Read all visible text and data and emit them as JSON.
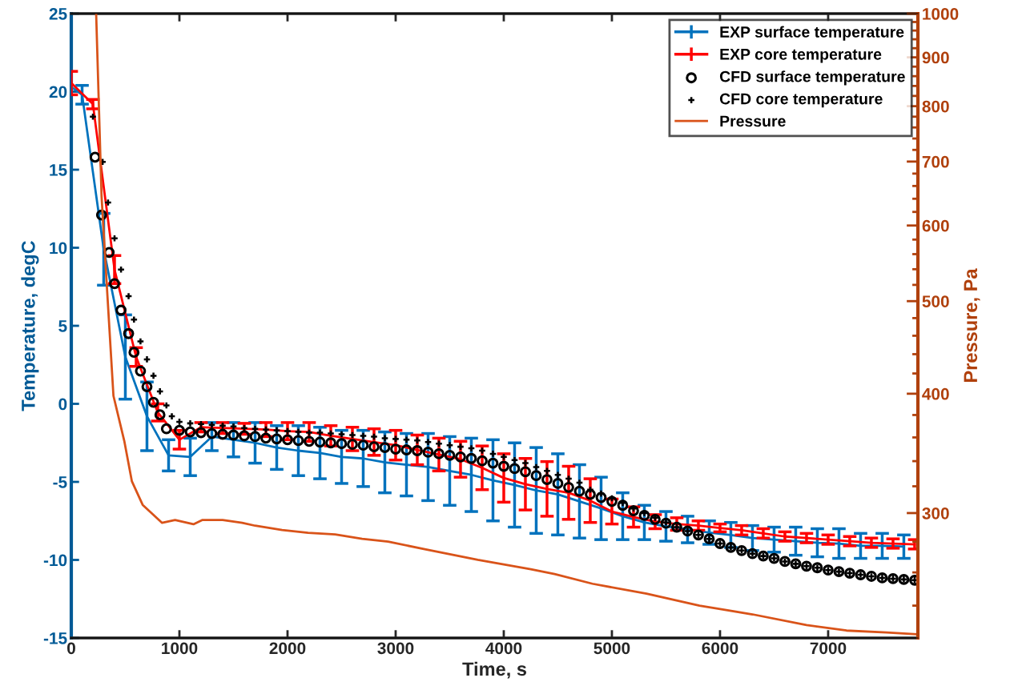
{
  "chart_data": {
    "type": "line",
    "xlabel": "Time, s",
    "ylabel": "Temperature, degC",
    "y2label": "Pressure, Pa",
    "xlim": [
      0,
      7830
    ],
    "xticks": [
      0,
      1000,
      2000,
      3000,
      4000,
      5000,
      6000,
      7000
    ],
    "ylim": [
      -15,
      25
    ],
    "yticks": [
      -15,
      -10,
      -5,
      0,
      5,
      10,
      15,
      20,
      25
    ],
    "y2lim": [
      222,
      1000
    ],
    "log": "y2",
    "y2ticks": [
      {
        "value": 240,
        "label": null
      },
      {
        "value": 260,
        "label": null
      },
      {
        "value": 280,
        "label": null
      },
      300,
      {
        "value": 320,
        "label": null
      },
      {
        "value": 340,
        "label": null
      },
      {
        "value": 360,
        "label": null
      },
      {
        "value": 380,
        "label": null
      },
      400,
      {
        "value": 420,
        "label": null
      },
      {
        "value": 440,
        "label": null
      },
      {
        "value": 460,
        "label": null
      },
      {
        "value": 480,
        "label": null
      },
      500,
      {
        "value": 520,
        "label": null
      },
      {
        "value": 540,
        "label": null
      },
      {
        "value": 560,
        "label": null
      },
      {
        "value": 580,
        "label": null
      },
      600,
      {
        "value": 620,
        "label": null
      },
      {
        "value": 640,
        "label": null
      },
      {
        "value": 660,
        "label": null
      },
      {
        "value": 680,
        "label": null
      },
      700,
      {
        "value": 720,
        "label": null
      },
      {
        "value": 740,
        "label": null
      },
      {
        "value": 760,
        "label": null
      },
      {
        "value": 780,
        "label": null
      },
      800,
      {
        "value": 820,
        "label": null
      },
      {
        "value": 840,
        "label": null
      },
      {
        "value": 860,
        "label": null
      },
      {
        "value": 880,
        "label": null
      },
      900,
      {
        "value": 920,
        "label": null
      },
      {
        "value": 940,
        "label": null
      },
      {
        "value": 960,
        "label": null
      },
      {
        "value": 980,
        "label": null
      },
      1000
    ],
    "grid": false,
    "legend": "top right",
    "series": [
      {
        "name": "EXP surface temperature",
        "color": "#0072bd",
        "marker": "none",
        "line_style": "solid",
        "x": [
          0,
          100,
          300,
          500,
          700,
          900,
          1100,
          1300,
          1500,
          1700,
          1900,
          2100,
          2300,
          2500,
          2700,
          2900,
          3100,
          3300,
          3500,
          3700,
          3900,
          4100,
          4300,
          4500,
          4700,
          4900,
          5100,
          5300,
          5500,
          5700,
          5900,
          6100,
          6300,
          6500,
          6700,
          6900,
          7100,
          7300,
          7500,
          7700
        ],
        "values": [
          20.3,
          19.8,
          9.9,
          3.0,
          -0.8,
          -3.3,
          -3.4,
          -2.1,
          -2.3,
          -2.5,
          -2.8,
          -3.0,
          -3.15,
          -3.4,
          -3.5,
          -3.75,
          -3.9,
          -4.05,
          -4.3,
          -4.55,
          -4.9,
          -5.2,
          -5.55,
          -5.8,
          -6.25,
          -6.7,
          -7.2,
          -7.6,
          -7.85,
          -8.05,
          -8.25,
          -8.4,
          -8.6,
          -8.7,
          -8.8,
          -8.9,
          -8.95,
          -9.1,
          -9.1,
          -9.15
        ],
        "errors": [
          null,
          0.6,
          2.3,
          2.7,
          2.2,
          1.0,
          1.2,
          0.9,
          1.1,
          1.3,
          1.4,
          1.6,
          1.65,
          1.7,
          1.8,
          1.95,
          2.0,
          2.15,
          2.2,
          2.35,
          2.6,
          2.7,
          2.75,
          2.6,
          2.35,
          2.0,
          1.5,
          1.1,
          0.95,
          0.85,
          0.75,
          0.8,
          0.8,
          0.8,
          0.9,
          0.9,
          0.95,
          0.8,
          0.8,
          0.75
        ]
      },
      {
        "name": "EXP core temperature",
        "color": "#ff0000",
        "marker": "none",
        "line_style": "solid",
        "x": [
          0,
          200,
          400,
          600,
          800,
          1000,
          1200,
          1400,
          1600,
          1800,
          2000,
          2200,
          2400,
          2600,
          2800,
          3000,
          3200,
          3400,
          3600,
          3800,
          4000,
          4200,
          4400,
          4600,
          4800,
          5000,
          5200,
          5400,
          5600,
          5800,
          6000,
          6200,
          6400,
          6600,
          6800,
          7000,
          7200,
          7400,
          7600,
          7800
        ],
        "values": [
          20.55,
          19.2,
          8.6,
          3.0,
          -0.55,
          -2.3,
          -1.5,
          -1.55,
          -1.6,
          -1.65,
          -1.75,
          -1.8,
          -2.05,
          -2.25,
          -2.45,
          -2.65,
          -2.95,
          -3.25,
          -3.55,
          -4.1,
          -4.75,
          -5.15,
          -5.45,
          -5.7,
          -6.2,
          -6.9,
          -7.25,
          -7.55,
          -7.7,
          -7.8,
          -7.95,
          -8.1,
          -8.3,
          -8.5,
          -8.6,
          -8.7,
          -8.8,
          -8.9,
          -8.95,
          -9.0
        ],
        "errors": [
          0.75,
          0.3,
          0.9,
          0.6,
          0.55,
          0.6,
          0.3,
          0.35,
          0.35,
          0.45,
          0.55,
          0.6,
          0.65,
          0.75,
          0.85,
          0.95,
          0.95,
          1.05,
          1.15,
          1.4,
          1.55,
          1.65,
          1.75,
          1.7,
          1.4,
          0.8,
          0.65,
          0.45,
          0.4,
          0.3,
          0.25,
          0.3,
          0.3,
          0.3,
          0.3,
          0.3,
          0.3,
          0.3,
          0.3,
          0.3
        ]
      },
      {
        "name": "CFD surface temperature",
        "type": "scatter",
        "color": "#000000",
        "marker": "circle",
        "x": [
          220,
          280,
          350,
          400,
          460,
          530,
          580,
          640,
          700,
          760,
          820,
          880,
          1000,
          1100,
          1200,
          1300,
          1400,
          1500,
          1600,
          1700,
          1800,
          1900,
          2000,
          2100,
          2200,
          2300,
          2400,
          2500,
          2600,
          2700,
          2800,
          2900,
          3000,
          3100,
          3200,
          3300,
          3400,
          3500,
          3600,
          3700,
          3800,
          3900,
          4000,
          4100,
          4200,
          4300,
          4400,
          4500,
          4600,
          4700,
          4800,
          4900,
          5000,
          5100,
          5200,
          5300,
          5400,
          5500,
          5600,
          5700,
          5800,
          5900,
          6000,
          6100,
          6200,
          6300,
          6400,
          6500,
          6600,
          6700,
          6800,
          6900,
          7000,
          7100,
          7200,
          7300,
          7400,
          7500,
          7600,
          7700,
          7800
        ],
        "values": [
          15.8,
          12.1,
          9.7,
          7.7,
          6.0,
          4.5,
          3.3,
          2.1,
          1.1,
          0.1,
          -0.7,
          -1.6,
          -1.7,
          -1.8,
          -1.85,
          -1.9,
          -1.95,
          -2.0,
          -2.05,
          -2.1,
          -2.2,
          -2.25,
          -2.3,
          -2.35,
          -2.4,
          -2.45,
          -2.5,
          -2.55,
          -2.6,
          -2.65,
          -2.75,
          -2.8,
          -2.9,
          -2.95,
          -3.0,
          -3.1,
          -3.2,
          -3.3,
          -3.4,
          -3.5,
          -3.65,
          -3.8,
          -4.0,
          -4.15,
          -4.35,
          -4.6,
          -4.85,
          -5.1,
          -5.35,
          -5.6,
          -5.8,
          -6.0,
          -6.25,
          -6.5,
          -6.85,
          -7.15,
          -7.4,
          -7.65,
          -7.9,
          -8.15,
          -8.4,
          -8.65,
          -8.95,
          -9.2,
          -9.4,
          -9.6,
          -9.75,
          -9.9,
          -10.1,
          -10.25,
          -10.4,
          -10.5,
          -10.65,
          -10.75,
          -10.85,
          -10.95,
          -11.05,
          -11.15,
          -11.2,
          -11.25,
          -11.3
        ]
      },
      {
        "name": "CFD core temperature",
        "type": "scatter",
        "color": "#000000",
        "marker": "cross",
        "x": [
          200,
          290,
          340,
          400,
          460,
          530,
          580,
          640,
          700,
          760,
          820,
          880,
          930,
          1000,
          1100,
          1200,
          1300,
          1400,
          1500,
          1600,
          1700,
          1800,
          1900,
          2000,
          2100,
          2200,
          2300,
          2400,
          2500,
          2600,
          2700,
          2800,
          2900,
          3000,
          3100,
          3200,
          3300,
          3400,
          3500,
          3600,
          3700,
          3800,
          3900,
          4000,
          4100,
          4200,
          4300,
          4400,
          4500,
          4600,
          4700,
          4800,
          4900,
          5000,
          5100,
          5200,
          5300,
          5400,
          5500,
          5600,
          5700,
          5800,
          5900,
          6000,
          6100,
          6200,
          6300,
          6400,
          6500,
          6600,
          6700,
          6800,
          6900,
          7000,
          7100,
          7200,
          7300,
          7400,
          7500,
          7600,
          7700,
          7800
        ],
        "values": [
          18.4,
          15.5,
          12.9,
          10.6,
          8.6,
          6.9,
          5.4,
          4.0,
          2.85,
          1.8,
          0.8,
          -0.1,
          -0.8,
          -1.15,
          -1.25,
          -1.3,
          -1.35,
          -1.4,
          -1.45,
          -1.55,
          -1.6,
          -1.65,
          -1.7,
          -1.75,
          -1.8,
          -1.85,
          -1.85,
          -1.9,
          -1.95,
          -2.0,
          -2.05,
          -2.1,
          -2.2,
          -2.25,
          -2.3,
          -2.35,
          -2.45,
          -2.55,
          -2.65,
          -2.75,
          -2.85,
          -3.0,
          -3.2,
          -3.4,
          -3.6,
          -3.8,
          -4.05,
          -4.3,
          -4.55,
          -4.8,
          -5.05,
          -5.5,
          -5.75,
          -6.05,
          -6.35,
          -6.7,
          -7.0,
          -7.3,
          -7.6,
          -7.9,
          -8.15,
          -8.4,
          -8.65,
          -8.95,
          -9.2,
          -9.4,
          -9.6,
          -9.75,
          -9.9,
          -10.1,
          -10.25,
          -10.4,
          -10.5,
          -10.65,
          -10.75,
          -10.85,
          -10.95,
          -11.05,
          -11.15,
          -11.2,
          -11.25,
          -11.3
        ]
      },
      {
        "name": "Pressure",
        "color": "#d95319",
        "marker": "none",
        "line_style": "solid",
        "axis": "y2",
        "x": [
          230,
          280,
          330,
          390,
          490,
          560,
          660,
          840,
          960,
          1130,
          1210,
          1400,
          1580,
          1700,
          1950,
          2190,
          2440,
          2690,
          2930,
          3270,
          3760,
          4250,
          4470,
          4820,
          5320,
          5810,
          6300,
          6800,
          7170,
          7540,
          7810
        ],
        "values": [
          1000,
          644,
          516,
          398,
          357,
          324,
          306,
          293,
          295,
          292,
          295,
          295,
          293,
          291,
          288,
          286,
          285,
          282,
          280,
          275,
          268,
          262,
          259,
          253,
          247,
          240,
          235,
          229,
          226,
          225,
          224
        ]
      }
    ]
  }
}
